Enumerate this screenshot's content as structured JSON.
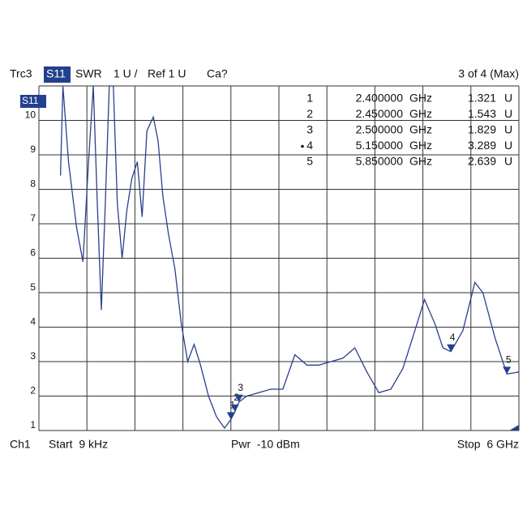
{
  "chart_data": {
    "type": "line",
    "header": {
      "trace": "Trc3",
      "parameter": "S11",
      "format": "SWR",
      "scale": "1 U /",
      "reference": "Ref 1 U",
      "calibration": "Ca?",
      "marker_status": "3 of 4 (Max)"
    },
    "footer": {
      "channel": "Ch1",
      "start": "Start  9 kHz",
      "power": "Pwr  -10 dBm",
      "stop": "Stop  6 GHz"
    },
    "trace_label": "S11",
    "color": "#2b3f8c",
    "grid": true,
    "xlim": [
      9e-06,
      6
    ],
    "ylim": [
      1,
      11
    ],
    "yticks": [
      1,
      2,
      3,
      4,
      5,
      6,
      7,
      8,
      9,
      10
    ],
    "x": [
      0.27,
      0.3,
      0.37,
      0.47,
      0.55,
      0.62,
      0.68,
      0.73,
      0.78,
      0.83,
      0.88,
      0.93,
      0.98,
      1.04,
      1.1,
      1.16,
      1.23,
      1.29,
      1.35,
      1.43,
      1.49,
      1.55,
      1.62,
      1.7,
      1.78,
      1.86,
      1.94,
      2.02,
      2.12,
      2.22,
      2.32,
      2.4,
      2.45,
      2.5,
      2.6,
      2.75,
      2.9,
      3.05,
      3.2,
      3.35,
      3.5,
      3.65,
      3.8,
      3.95,
      4.1,
      4.25,
      4.4,
      4.55,
      4.7,
      4.82,
      4.95,
      5.05,
      5.15,
      5.3,
      5.45,
      5.55,
      5.7,
      5.85,
      6.0
    ],
    "values": [
      8.4,
      11,
      8.8,
      6.9,
      5.9,
      8.8,
      11,
      7.6,
      4.5,
      7.6,
      11,
      11,
      7.6,
      6.0,
      7.4,
      8.3,
      8.8,
      7.2,
      9.7,
      10.1,
      9.4,
      7.8,
      6.7,
      5.7,
      4.1,
      3.0,
      3.5,
      2.9,
      2.0,
      1.4,
      1.07,
      1.321,
      1.543,
      1.829,
      2.0,
      2.1,
      2.2,
      2.2,
      3.2,
      2.9,
      2.9,
      3.0,
      3.1,
      3.4,
      2.7,
      2.1,
      2.2,
      2.8,
      3.9,
      4.8,
      4.1,
      3.4,
      3.289,
      3.9,
      5.3,
      5.0,
      3.7,
      2.639,
      2.7
    ],
    "markers": [
      {
        "id": "1",
        "frequency": {
          "value": 2.4,
          "label": "2.400000"
        },
        "frequency_unit": "GHz",
        "value": 1.321,
        "value_unit": "U"
      },
      {
        "id": "2",
        "frequency": {
          "value": 2.45,
          "label": "2.450000"
        },
        "frequency_unit": "GHz",
        "value": 1.543,
        "value_unit": "U"
      },
      {
        "id": "3",
        "frequency": {
          "value": 2.5,
          "label": "2.500000"
        },
        "frequency_unit": "GHz",
        "value": 1.829,
        "value_unit": "U"
      },
      {
        "id": "4",
        "frequency": {
          "value": 5.15,
          "label": "5.150000"
        },
        "frequency_unit": "GHz",
        "value": 3.289,
        "value_unit": "U",
        "active": true
      },
      {
        "id": "5",
        "frequency": {
          "value": 5.85,
          "label": "5.850000"
        },
        "frequency_unit": "GHz",
        "value": 2.639,
        "value_unit": "U"
      }
    ]
  }
}
